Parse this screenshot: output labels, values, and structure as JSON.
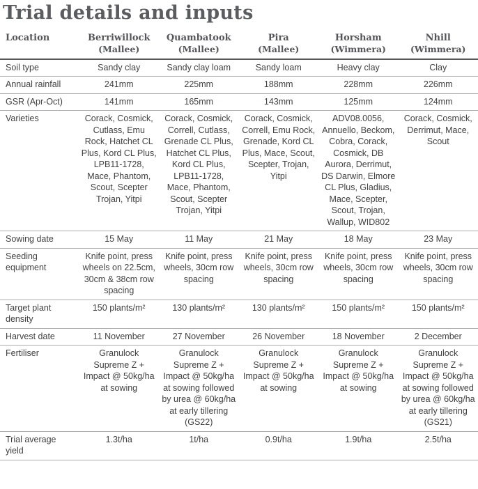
{
  "page": {
    "title": "Trial details and inputs"
  },
  "table": {
    "corner_label": "Location",
    "locations": [
      {
        "name": "Berriwillock",
        "region": "(Mallee)"
      },
      {
        "name": "Quambatook",
        "region": "(Mallee)"
      },
      {
        "name": "Pira",
        "region": "(Mallee)"
      },
      {
        "name": "Horsham",
        "region": "(Wimmera)"
      },
      {
        "name": "Nhill",
        "region": "(Wimmera)"
      }
    ],
    "rows": [
      {
        "label": "Soil type",
        "values": [
          "Sandy clay",
          "Sandy clay loam",
          "Sandy loam",
          "Heavy clay",
          "Clay"
        ]
      },
      {
        "label": "Annual rainfall",
        "values": [
          "241mm",
          "225mm",
          "188mm",
          "228mm",
          "226mm"
        ]
      },
      {
        "label": "GSR (Apr-Oct)",
        "values": [
          "141mm",
          "165mm",
          "143mm",
          "125mm",
          "124mm"
        ]
      },
      {
        "label": "Varieties",
        "values": [
          "Corack, Cosmick, Cutlass, Emu Rock, Hatchet CL Plus, Kord CL Plus, LPB11-1728, Mace, Phantom, Scout, Scepter Trojan, Yitpi",
          "Corack, Cosmick, Correll, Cutlass, Grenade CL Plus, Hatchet CL Plus, Kord CL Plus, LPB11-1728, Mace, Phantom, Scout, Scepter Trojan, Yitpi",
          "Corack, Cosmick, Correll, Emu Rock, Grenade, Kord CL Plus, Mace, Scout, Scepter, Trojan, Yitpi",
          "ADV08.0056, Annuello, Beckom, Cobra, Corack, Cosmick, DB Aurora, Derrimut, DS Darwin, Elmore CL Plus, Gladius, Mace, Scepter, Scout, Trojan, Wallup, WID802",
          "Corack, Cosmick, Derrimut, Mace, Scout"
        ]
      },
      {
        "label": "Sowing date",
        "values": [
          "15 May",
          "11 May",
          "21 May",
          "18 May",
          "23 May"
        ]
      },
      {
        "label": "Seeding equipment",
        "values": [
          "Knife point, press wheels on 22.5cm, 30cm & 38cm row spacing",
          "Knife point, press wheels, 30cm row spacing",
          "Knife point, press wheels, 30cm row spacing",
          "Knife point, press wheels, 30cm row spacing",
          "Knife point, press wheels, 30cm row spacing"
        ]
      },
      {
        "label": "Target plant density",
        "values": [
          "150 plants/m²",
          "130 plants/m²",
          "130 plants/m²",
          "150 plants/m²",
          "150 plants/m²"
        ]
      },
      {
        "label": "Harvest date",
        "values": [
          "11 November",
          "27 November",
          "26 November",
          "18 November",
          "2 December"
        ]
      },
      {
        "label": "Fertiliser",
        "values": [
          "Granulock Supreme Z + Impact @ 50kg/ha at sowing",
          "Granulock Supreme Z + Impact @ 50kg/ha at sowing followed by urea @ 60kg/ha at early tillering (GS22)",
          "Granulock Supreme Z + Impact @ 50kg/ha at sowing",
          "Granulock Supreme Z + Impact @ 50kg/ha at sowing",
          "Granulock Supreme Z + Impact @ 50kg/ha at sowing followed by urea @ 60kg/ha at early tillering (GS21)"
        ]
      },
      {
        "label": "Trial average yield",
        "values": [
          "1.3t/ha",
          "1t/ha",
          "0.9t/ha",
          "1.9t/ha",
          "2.5t/ha"
        ]
      }
    ]
  },
  "colors": {
    "heading_text": "#55565a",
    "body_text": "#414042",
    "row_line": "#a8aaad",
    "header_line": "#55565a"
  }
}
